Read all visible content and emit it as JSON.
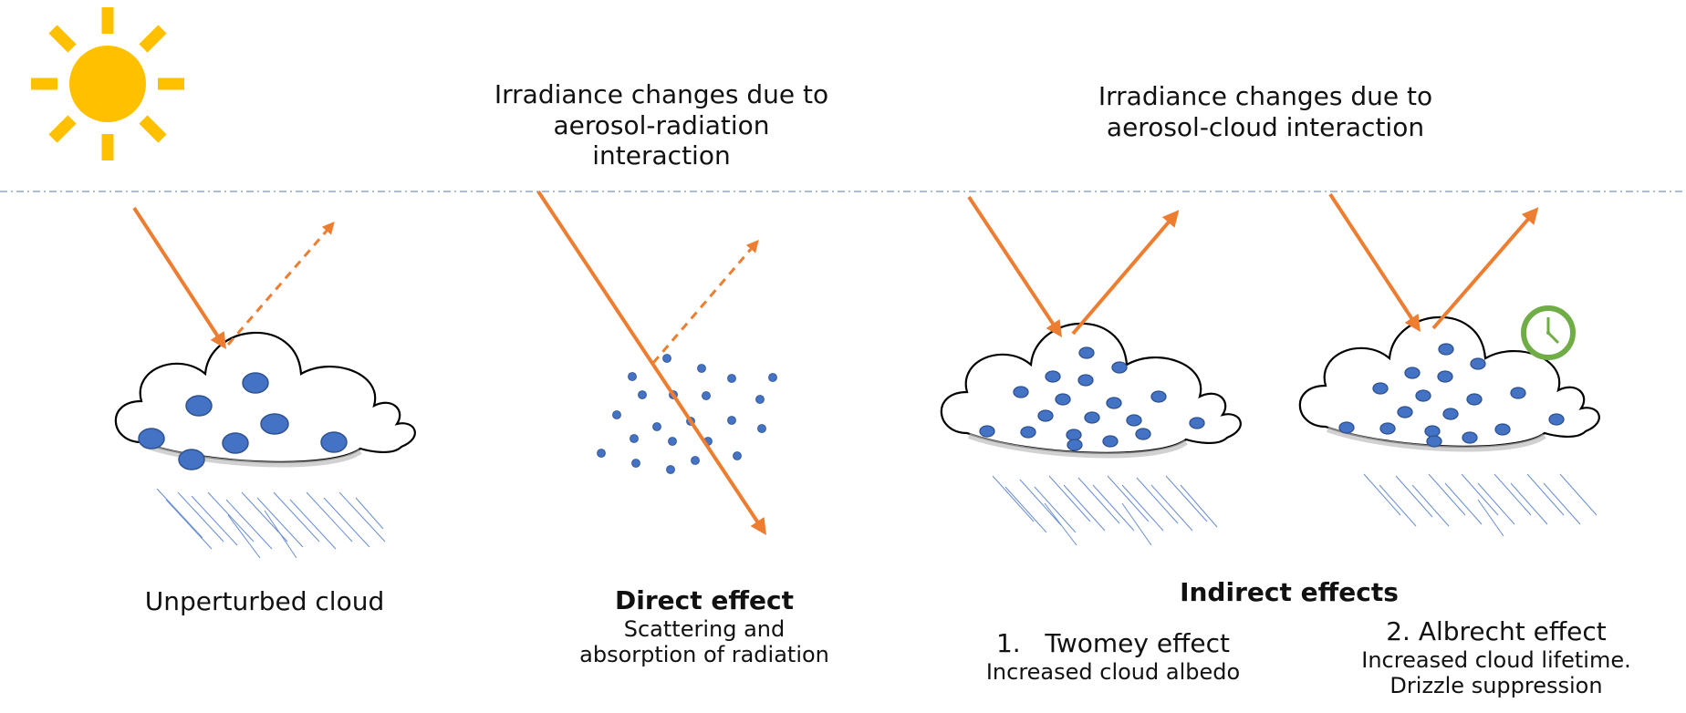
{
  "header": {
    "radiation_title": [
      "Irradiance changes due to",
      "aerosol-radiation",
      "interaction"
    ],
    "cloud_title": [
      "Irradiance changes due to",
      "aerosol-cloud interaction"
    ]
  },
  "panels": {
    "unperturbed": {
      "label": "Unperturbed cloud"
    },
    "direct": {
      "title": "Direct effect",
      "desc": [
        "Scattering and",
        "absorption of radiation"
      ]
    },
    "indirect": {
      "title": "Indirect effects",
      "twomey": {
        "title": "1.   Twomey effect",
        "desc": "Increased cloud albedo"
      },
      "albrecht": {
        "title": "2. Albrecht effect",
        "desc": [
          "Increased cloud lifetime.",
          "Drizzle suppression"
        ]
      }
    }
  },
  "icons": [
    "sun-icon",
    "clock-icon",
    "cloud-icon",
    "rain-icon",
    "aerosol-dots"
  ],
  "colors": {
    "sun": "#FFC000",
    "arrow": "#ED7D31",
    "droplet": "#4472C4",
    "droplet_edge": "#2F528F",
    "rain": "#4472C4",
    "clock": "#70AD47",
    "divider": "#8EA9C8"
  }
}
